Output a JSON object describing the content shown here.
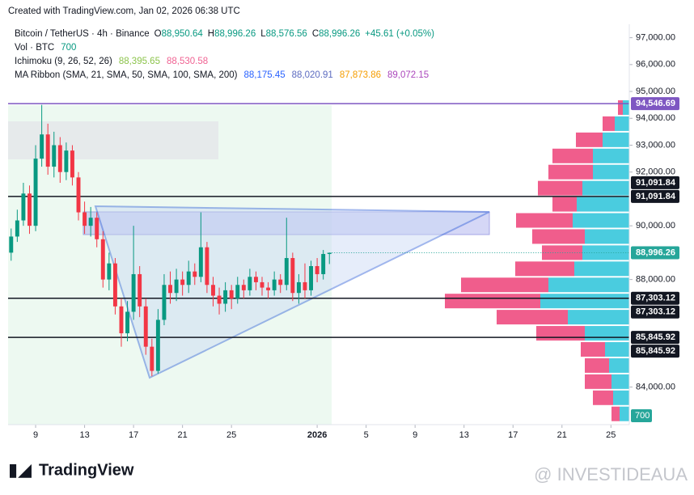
{
  "caption": "Created with TradingView.com, Jan 02, 2026 06:38 UTC",
  "chart_data": {
    "type": "candlestick",
    "header": {
      "symbol": "Bitcoin / TetherUS · 4h · Binance",
      "ohlc": [
        {
          "key": "O",
          "value": "88,950.64"
        },
        {
          "key": "H",
          "value": "88,996.26"
        },
        {
          "key": "L",
          "value": "88,576.56"
        },
        {
          "key": "C",
          "value": "88,996.26"
        }
      ],
      "change": "+45.61 (+0.05%)",
      "value_color": "#089981",
      "indicators": [
        {
          "name": "Vol · BTC",
          "values": [
            {
              "text": "700",
              "color": "#089981"
            }
          ]
        },
        {
          "name": "Ichimoku (9, 26, 52, 26)",
          "values": [
            {
              "text": "88,395.65",
              "color": "#8bc34a"
            },
            {
              "text": "88,530.58",
              "color": "#f06292"
            }
          ]
        },
        {
          "name": "MA Ribbon (SMA, 21, SMA, 50, SMA, 100, SMA, 200)",
          "values": [
            {
              "text": "88,175.45",
              "color": "#2962ff"
            },
            {
              "text": "88,020.91",
              "color": "#5c6bc0"
            },
            {
              "text": "87,873.86",
              "color": "#f59d00"
            },
            {
              "text": "89,072.15",
              "color": "#ab47bc"
            }
          ]
        }
      ]
    },
    "x": [
      7,
      7.5,
      8,
      8.5,
      9,
      9.5,
      10,
      10.5,
      11,
      11.5,
      12,
      12.5,
      13,
      13.5,
      14,
      14.5,
      15,
      15.5,
      16,
      16.5,
      17,
      17.5,
      18,
      18.5,
      19,
      19.5,
      20,
      20.5,
      21,
      21.5,
      22,
      22.5,
      23,
      23.5,
      24,
      24.5,
      25,
      25.5,
      26,
      26.5,
      27,
      27.5,
      28,
      28.5,
      29,
      29.5,
      30,
      30.5,
      31,
      31.5,
      32,
      32.5,
      33
    ],
    "open": [
      89000,
      89600,
      90200,
      91200,
      90000,
      92500,
      93400,
      92200,
      93000,
      92000,
      92800,
      91800,
      90500,
      90000,
      90300,
      89500,
      88000,
      88600,
      87000,
      86000,
      86800,
      88200,
      87000,
      85500,
      84600,
      86500,
      87800,
      87500,
      88000,
      87800,
      88300,
      88100,
      89200,
      87800,
      87400,
      87100,
      87600,
      87300,
      87800,
      87600,
      88100,
      87900,
      87700,
      87600,
      88000,
      87800,
      88800,
      87500,
      87900,
      87600,
      88500,
      88200,
      88950.64
    ],
    "high": [
      89900,
      90600,
      91600,
      91500,
      93000,
      94500,
      93800,
      93500,
      93300,
      93100,
      93000,
      92000,
      90900,
      90700,
      90500,
      89800,
      89000,
      88800,
      87300,
      87200,
      90000,
      88500,
      87300,
      85800,
      86900,
      88200,
      88300,
      88400,
      88300,
      88700,
      88600,
      90500,
      89400,
      88100,
      87700,
      87900,
      87800,
      88100,
      88000,
      88400,
      88300,
      88100,
      87900,
      88300,
      88200,
      90300,
      89000,
      88200,
      88600,
      88700,
      88800,
      89100,
      88996.26
    ],
    "low": [
      88700,
      89400,
      90000,
      89700,
      89800,
      92200,
      91900,
      91800,
      91600,
      91700,
      91500,
      90200,
      89700,
      89600,
      89200,
      87700,
      87600,
      86700,
      85500,
      85700,
      86500,
      86600,
      85200,
      84400,
      84500,
      86300,
      87100,
      87200,
      87400,
      87500,
      87800,
      87900,
      87500,
      87000,
      86700,
      86800,
      86900,
      87100,
      87300,
      87400,
      87600,
      87400,
      87300,
      87400,
      87500,
      87600,
      87200,
      87100,
      87300,
      87400,
      87900,
      88000,
      88576.56
    ],
    "close": [
      89600,
      90200,
      91200,
      90000,
      92500,
      93400,
      92200,
      93000,
      92000,
      92800,
      91800,
      90500,
      90000,
      90300,
      89500,
      88000,
      88600,
      87000,
      86000,
      86800,
      88200,
      87000,
      85500,
      84600,
      86500,
      87800,
      87500,
      88000,
      87800,
      88300,
      88100,
      89200,
      87800,
      87400,
      87100,
      87600,
      87300,
      87800,
      87600,
      88100,
      87900,
      87700,
      87600,
      88000,
      87800,
      88800,
      87500,
      87900,
      87600,
      88500,
      88200,
      88950.64,
      88996.26
    ],
    "up_color": "#089981",
    "down_color": "#f23645",
    "xlim": [
      6.75,
      57.5
    ],
    "xticks": [
      {
        "value": 9,
        "label": "9"
      },
      {
        "value": 13,
        "label": "13"
      },
      {
        "value": 17,
        "label": "17"
      },
      {
        "value": 21,
        "label": "21"
      },
      {
        "value": 25,
        "label": "25"
      },
      {
        "value": 32,
        "label": "2026"
      },
      {
        "value": 36,
        "label": "5"
      },
      {
        "value": 40,
        "label": "9"
      },
      {
        "value": 44,
        "label": "13"
      },
      {
        "value": 48,
        "label": "17"
      },
      {
        "value": 52,
        "label": "21"
      },
      {
        "value": 56,
        "label": "25"
      }
    ],
    "ylim": [
      82600,
      97500
    ],
    "yticks": [
      {
        "value": 97000,
        "label": "97,000.00"
      },
      {
        "value": 96000,
        "label": "96,000.00"
      },
      {
        "value": 95000,
        "label": "95,000.00"
      },
      {
        "value": 94000,
        "label": "94,000.00"
      },
      {
        "value": 93000,
        "label": "93,000.00"
      },
      {
        "value": 92000,
        "label": "92,000.00"
      },
      {
        "value": 90000,
        "label": "90,000.00"
      },
      {
        "value": 88000,
        "label": "88,000.00"
      },
      {
        "value": 84000,
        "label": "84,000.00"
      }
    ],
    "levels": [
      {
        "value": 94546.69,
        "label": "94,546.69",
        "color": "#7e57c2"
      },
      {
        "value": 91091.84,
        "label": "91,091.84",
        "color": "#131722"
      },
      {
        "value": 87303.12,
        "label": "87,303.12",
        "color": "#131722"
      },
      {
        "value": 85845.92,
        "label": "85,845.92",
        "color": "#131722"
      }
    ],
    "last_price": {
      "value": 88996.26,
      "label": "88,996.26",
      "color": "#26a69a"
    },
    "volume_label": "700",
    "profile": {
      "prices": [
        94400,
        93800,
        93200,
        92600,
        92000,
        91400,
        90800,
        90200,
        89600,
        89000,
        88400,
        87800,
        87200,
        86600,
        86000,
        85400,
        84800,
        84200,
        83600,
        83000
      ],
      "buy": [
        8,
        18,
        33,
        45,
        45,
        58,
        65,
        70,
        55,
        58,
        68,
        100,
        110,
        76,
        55,
        30,
        25,
        22,
        20,
        12
      ],
      "sell": [
        6,
        15,
        33,
        50,
        55,
        55,
        30,
        70,
        65,
        50,
        73,
        108,
        118,
        88,
        60,
        30,
        30,
        33,
        25,
        10
      ],
      "xlim": [
        0,
        250
      ],
      "buy_color": "#36c7dc",
      "sell_color": "#ee4b7f"
    }
  },
  "footer": {
    "logo": "TradingView",
    "watermark": "@ INVESTIDEAUA"
  }
}
